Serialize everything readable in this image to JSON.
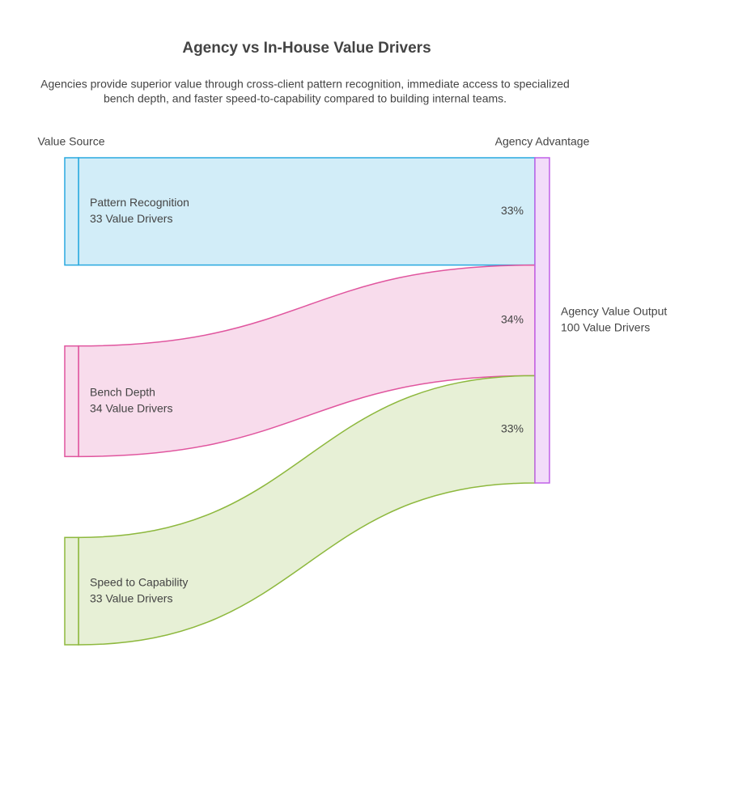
{
  "chart_data": {
    "type": "sankey",
    "title": "Agency vs In-House Value Drivers",
    "subtitle": [
      "Agencies provide superior value through cross-client pattern recognition, immediate access to specialized",
      "bench depth, and faster speed-to-capability compared to building internal teams."
    ],
    "source_header": "Value Source",
    "target_header": "Agency Advantage",
    "sources": {
      "names": [
        "Pattern Recognition",
        "Bench Depth",
        "Speed to Capability"
      ],
      "values": [
        33,
        34,
        33
      ],
      "value_labels": [
        "33 Value Drivers",
        "34 Value Drivers",
        "33 Value Drivers"
      ],
      "colors": [
        "#29a9df",
        "#e0559e",
        "#8db83d"
      ],
      "fills": [
        "#d2edf8",
        "#f8dcec",
        "#e7f0d6"
      ]
    },
    "target": {
      "name": "Agency Value Output",
      "value": 100,
      "value_label": "100 Value Drivers",
      "color": "#c061e8",
      "fill": "#f2dcf9"
    },
    "flows": {
      "values": [
        33,
        34,
        33
      ],
      "value_labels": [
        "33%",
        "34%",
        "33%"
      ]
    }
  }
}
